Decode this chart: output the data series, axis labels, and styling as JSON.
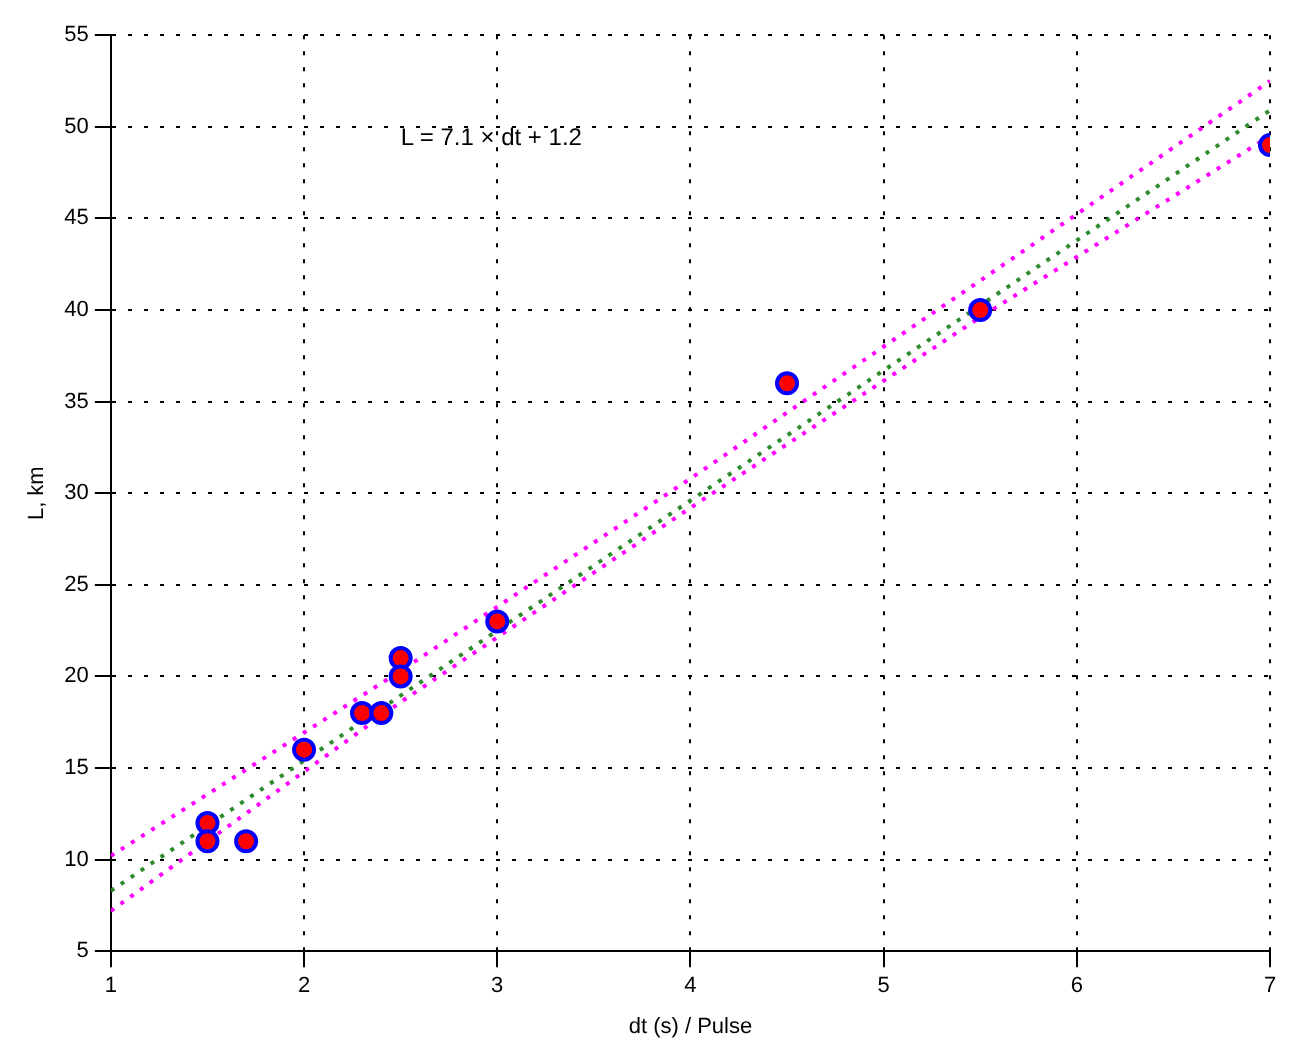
{
  "chart_data": {
    "type": "scatter",
    "xlabel": "dt (s) / Pulse",
    "ylabel": "L, km",
    "annotations": [
      "L = 7.1 × dt + 1.2"
    ],
    "xlim": [
      1,
      7
    ],
    "xticks": [
      1,
      2,
      3,
      4,
      5,
      6,
      7
    ],
    "ylim": [
      5,
      55
    ],
    "yticks": [
      5,
      10,
      15,
      20,
      25,
      30,
      35,
      40,
      45,
      50,
      55
    ],
    "grid": true,
    "series": [
      {
        "color": "#ff0000",
        "marker": "circle",
        "x": [
          1.5,
          1.5,
          1.7,
          2,
          2.3,
          2.4,
          2.5,
          2.5,
          3,
          4.5,
          5.5,
          7
        ],
        "values": [
          12,
          11,
          11,
          16,
          18,
          18,
          21,
          20,
          23,
          36,
          40,
          49
        ]
      },
      {
        "type": "line",
        "color": "#2e8b2e",
        "line_style": "dotted",
        "marker": "none",
        "x": [
          1,
          7
        ],
        "values": [
          8.3,
          50.9
        ]
      },
      {
        "type": "line",
        "color": "#ff00ff",
        "line_style": "dotted",
        "marker": "none",
        "x": [
          1,
          2.5,
          4,
          5.5,
          7
        ],
        "values": [
          10.2,
          20.3,
          30.8,
          41.6,
          52.5
        ]
      },
      {
        "type": "line",
        "color": "#ff00ff",
        "line_style": "dotted",
        "marker": "none",
        "x": [
          1,
          2.5,
          4,
          5.5,
          7
        ],
        "values": [
          7.2,
          18.6,
          29.2,
          39.6,
          49.5
        ]
      }
    ]
  }
}
